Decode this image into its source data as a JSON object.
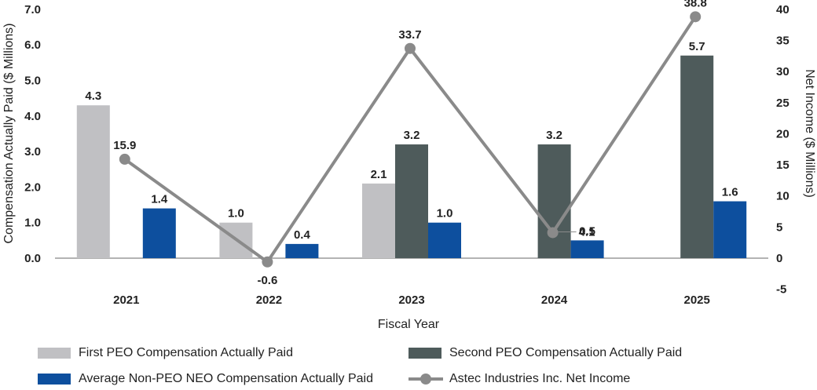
{
  "chart_data": {
    "type": "bar+line",
    "categories": [
      "2021",
      "2022",
      "2023",
      "2024",
      "2025"
    ],
    "xlabel": "Fiscal Year",
    "ylabel_left": "Compensation Actually Paid ($ Millions)",
    "ylabel_right": "Net Income ($ Millions)",
    "ylim_left": [
      0,
      7
    ],
    "yticks_left": [
      "0.0",
      "1.0",
      "2.0",
      "3.0",
      "4.0",
      "5.0",
      "6.0",
      "7.0"
    ],
    "ylim_right": [
      -5,
      40
    ],
    "yticks_right": [
      "-5",
      "0",
      "5",
      "10",
      "15",
      "20",
      "25",
      "30",
      "35",
      "40"
    ],
    "series": [
      {
        "name": "First PEO Compensation Actually Paid",
        "kind": "bar",
        "axis": "left",
        "color": "#c0c0c3",
        "values": [
          4.3,
          1.0,
          2.1,
          null,
          null
        ],
        "labels": [
          "4.3",
          "1.0",
          "2.1",
          "",
          ""
        ]
      },
      {
        "name": "Second PEO Compensation Actually Paid",
        "kind": "bar",
        "axis": "left",
        "color": "#4e5b5b",
        "values": [
          null,
          null,
          3.2,
          3.2,
          5.7
        ],
        "labels": [
          "",
          "",
          "3.2",
          "3.2",
          "5.7"
        ]
      },
      {
        "name": "Average Non-PEO NEO Compensation Actually Paid",
        "kind": "bar",
        "axis": "left",
        "color": "#0d4f9e",
        "values": [
          1.4,
          0.4,
          1.0,
          0.5,
          1.6
        ],
        "labels": [
          "1.4",
          "0.4",
          "1.0",
          "0.5",
          "1.6"
        ]
      },
      {
        "name": "Astec Industries Inc. Net Income",
        "kind": "line",
        "axis": "right",
        "color": "#8a8a8a",
        "values": [
          15.9,
          -0.6,
          33.7,
          4.1,
          38.8
        ],
        "labels": [
          "15.9",
          "-0.6",
          "33.7",
          "4.1",
          "38.8"
        ]
      }
    ],
    "legend": [
      "First PEO Compensation Actually Paid",
      "Second PEO Compensation Actually Paid",
      "Average Non-PEO NEO Compensation Actually Paid",
      "Astec Industries Inc. Net Income"
    ]
  }
}
